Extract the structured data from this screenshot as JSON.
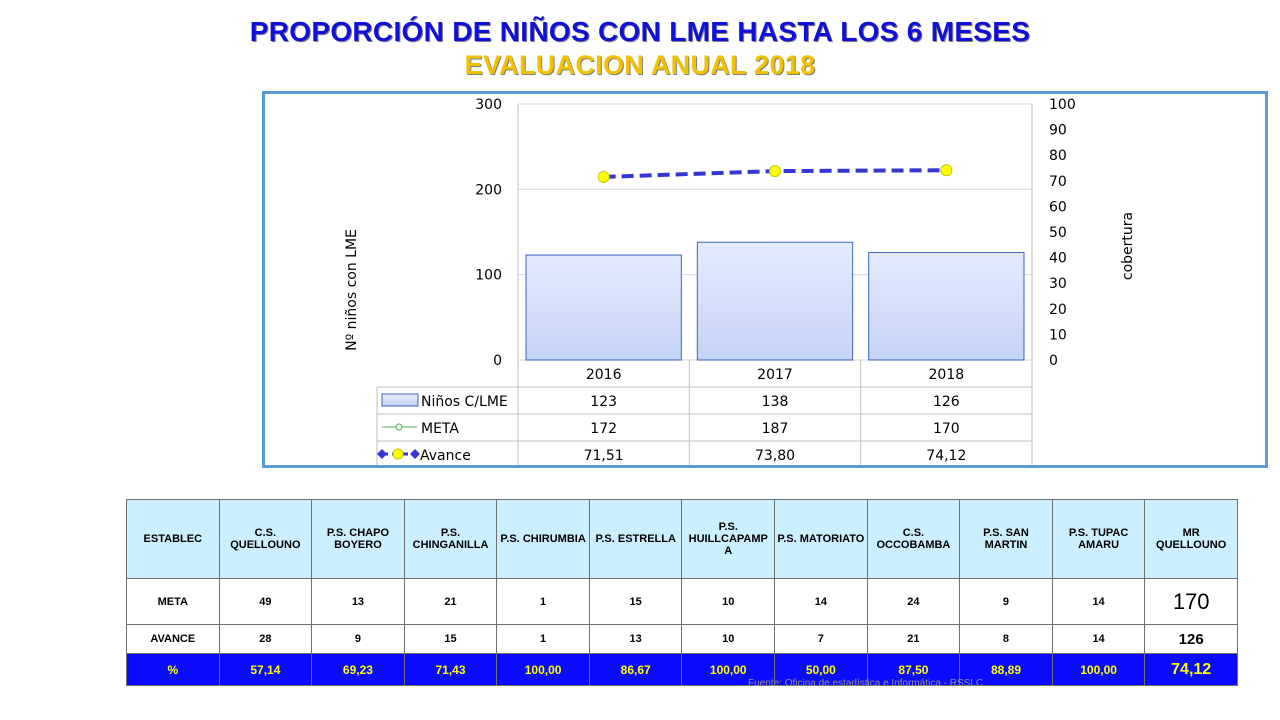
{
  "title": "PROPORCIÓN DE NIÑOS CON LME HASTA LOS 6 MESES",
  "subtitle": "EVALUACION  ANUAL 2018",
  "chart_data": {
    "type": "bar",
    "categories": [
      "2016",
      "2017",
      "2018"
    ],
    "series": [
      {
        "name": "Niños C/LME",
        "type": "bar",
        "axis": "left",
        "values": [
          123,
          138,
          126
        ],
        "display": [
          "123",
          "138",
          "126"
        ]
      },
      {
        "name": "META",
        "type": "line",
        "axis": "left",
        "visible": false,
        "values": [
          172,
          187,
          170
        ],
        "display": [
          "172",
          "187",
          "170"
        ]
      },
      {
        "name": "Avance",
        "type": "line",
        "axis": "right",
        "values": [
          71.51,
          73.8,
          74.12
        ],
        "display": [
          "71,51",
          "73,80",
          "74,12"
        ]
      }
    ],
    "ylabel": "Nº niños con LME",
    "y2label": "cobertura",
    "ylim": [
      0,
      300
    ],
    "y2lim": [
      0,
      100
    ],
    "yticks": [
      0,
      100,
      200,
      300
    ],
    "y2ticks": [
      0,
      10,
      20,
      30,
      40,
      50,
      60,
      70,
      80,
      90,
      100
    ],
    "grid": true,
    "data_table": true,
    "colors": {
      "bar": "#c5d3f6",
      "bar_stroke": "#3b64b8",
      "avance_line": "#3535d4",
      "avance_marker": "#ffff00",
      "meta_line": "#4caf50"
    }
  },
  "table": {
    "headers": [
      "ESTABLEC",
      "C.S. QUELLOUNO",
      "P.S. CHAPO BOYERO",
      "P.S. CHINGANILLA",
      "P.S. CHIRUMBIA",
      "P.S. ESTRELLA",
      "P.S. HUILLCAPAMP A",
      "P.S. MATORIATO",
      "C.S. OCCOBAMBA",
      "P.S. SAN MARTIN",
      "P.S. TUPAC AMARU",
      "MR QUELLOUNO"
    ],
    "rows": [
      {
        "label": "META",
        "values": [
          "49",
          "13",
          "21",
          "1",
          "15",
          "10",
          "14",
          "24",
          "9",
          "14",
          "170"
        ]
      },
      {
        "label": "AVANCE",
        "values": [
          "28",
          "9",
          "15",
          "1",
          "13",
          "10",
          "7",
          "21",
          "8",
          "14",
          "126"
        ]
      },
      {
        "label": "%",
        "values": [
          "57,14",
          "69,23",
          "71,43",
          "100,00",
          "86,67",
          "100,00",
          "50,00",
          "87,50",
          "88,89",
          "100,00",
          "74,12"
        ]
      }
    ],
    "colors": {
      "header_bg": "#ccefff",
      "pct_bg": "#0b0bff",
      "pct_text": "#ffff00"
    }
  },
  "source": "Fuente: Oficina de estadística e Informática - RSSLC"
}
